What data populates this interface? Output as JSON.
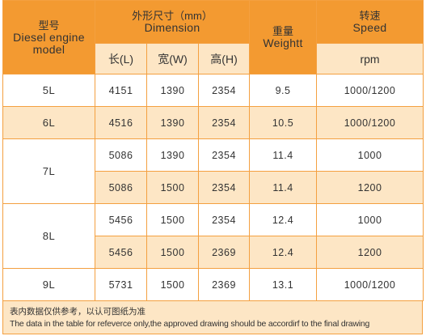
{
  "header": {
    "model_zh": "型号",
    "model_en1": "Diesel engine",
    "model_en2": "model",
    "dim_zh": "外形尺寸（mm）",
    "dim_en": "Dimension",
    "weight_zh": "重量",
    "weight_en": "Weightt",
    "speed_zh": "转速",
    "speed_en": "Speed",
    "length": "长(L)",
    "width": "宽(W)",
    "height": "高(H)",
    "rpm": "rpm"
  },
  "rows": [
    {
      "model": "5L",
      "l": "4151",
      "w": "1390",
      "h": "2354",
      "weight": "9.5",
      "speed": "1000/1200"
    },
    {
      "model": "6L",
      "l": "4516",
      "w": "1390",
      "h": "2354",
      "weight": "10.5",
      "speed": "1000/1200"
    },
    {
      "model": "7L",
      "l": "5086",
      "w": "1390",
      "h": "2354",
      "weight": "11.4",
      "speed": "1000"
    },
    {
      "model": "",
      "l": "5086",
      "w": "1500",
      "h": "2354",
      "weight": "11.4",
      "speed": "1200"
    },
    {
      "model": "8L",
      "l": "5456",
      "w": "1500",
      "h": "2354",
      "weight": "12.4",
      "speed": "1000"
    },
    {
      "model": "",
      "l": "5456",
      "w": "1500",
      "h": "2369",
      "weight": "12.4",
      "speed": "1200"
    },
    {
      "model": "9L",
      "l": "5731",
      "w": "1500",
      "h": "2369",
      "weight": "13.1",
      "speed": "1000/1200"
    }
  ],
  "note": {
    "zh": "表内数据仅供参考，以认可图纸为准",
    "en": "The  data in the table for refeverce only,the approved drawing should be accordirf to the final drawing"
  },
  "colors": {
    "accent": "#f39a31",
    "light": "#fde6c5",
    "border": "#f4a040"
  }
}
